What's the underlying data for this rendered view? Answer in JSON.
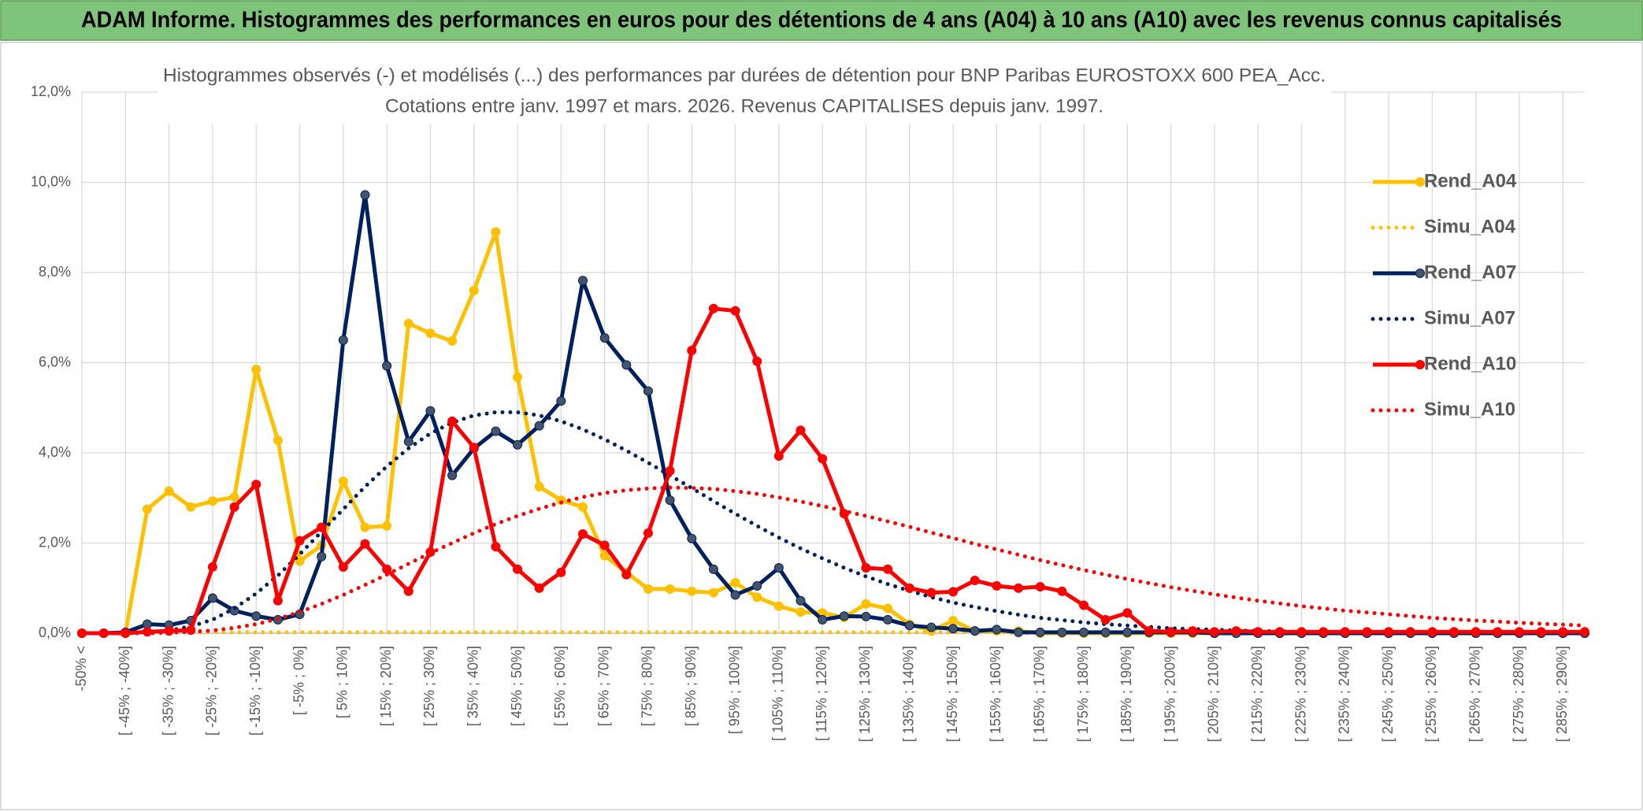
{
  "header": {
    "title": "ADAM Informe. Histogrammes des performances en euros pour des détentions de 4 ans (A04) à 10 ans (A10) avec les revenus connus capitalisés"
  },
  "chart_data": {
    "type": "line",
    "title": "Histogrammes observés (-) et modélisés (...) des performances par durées de détention pour BNP Paribas EUROSTOXX 600 PEA_Acc.",
    "subtitle": "Cotations entre janv. 1997 et mars. 2026. Revenus CAPITALISES depuis janv. 1997.",
    "categories": [
      "-50% <",
      null,
      "[ -45% ; -40%]",
      null,
      "[ -35% ; -30%]",
      null,
      "[ -25% ; -20%]",
      null,
      "[ -15% ; -10%]",
      null,
      "[ -5% ; 0%]",
      null,
      "[ 5% ; 10%]",
      null,
      "[ 15% ; 20%]",
      null,
      "[ 25% ; 30%]",
      null,
      "[ 35% ; 40%]",
      null,
      "[ 45% ; 50%]",
      null,
      "[ 55% ; 60%]",
      null,
      "[ 65% ; 70%]",
      null,
      "[ 75% ; 80%]",
      null,
      "[ 85% ; 90%]",
      null,
      "[ 95% ; 100%]",
      null,
      "[ 105% ; 110%]",
      null,
      "[ 115% ; 120%]",
      null,
      "[ 125% ; 130%]",
      null,
      "[ 135% ; 140%]",
      null,
      "[ 145% ; 150%]",
      null,
      "[ 155% ; 160%]",
      null,
      "[ 165% ; 170%]",
      null,
      "[ 175% ; 180%]",
      null,
      "[ 185% ; 190%]",
      null,
      "[ 195% ; 200%]",
      null,
      "[ 205% ; 210%]",
      null,
      "[ 215% ; 220%]",
      null,
      "[ 225% ; 230%]",
      null,
      "[ 235% ; 240%]",
      null,
      "[ 245% ; 250%]",
      null,
      "[ 255% ; 260%]",
      null,
      "[ 265% ; 270%]",
      null,
      "[ 275% ; 280%]",
      null,
      "[ 285% ; 290%]",
      null
    ],
    "ylim": [
      0,
      12
    ],
    "yticks": [
      {
        "value": 0,
        "label": "0,0%"
      },
      {
        "value": 2,
        "label": "2,0%"
      },
      {
        "value": 4,
        "label": "4,0%"
      },
      {
        "value": 6,
        "label": "6,0%"
      },
      {
        "value": 8,
        "label": "8,0%"
      },
      {
        "value": 10,
        "label": "10,0%"
      },
      {
        "value": 12,
        "label": "12,0%"
      }
    ],
    "grid": true,
    "legend": "right",
    "series": [
      {
        "name": "Rend_A04",
        "color": "#ffc000",
        "line_style": "solid",
        "markers": true,
        "values": [
          0,
          0,
          0,
          2.75,
          3.15,
          2.8,
          2.93,
          3.02,
          5.85,
          4.28,
          1.6,
          1.95,
          3.37,
          2.35,
          2.38,
          6.87,
          6.65,
          6.48,
          7.6,
          8.9,
          5.68,
          3.25,
          2.95,
          2.8,
          1.72,
          1.35,
          0.98,
          0.98,
          0.93,
          0.9,
          1.12,
          0.8,
          0.6,
          0.47,
          0.45,
          0.35,
          0.65,
          0.55,
          0.2,
          0.05,
          0.28,
          0.05,
          0.05,
          0.05,
          0,
          0,
          0,
          0,
          0,
          0,
          0,
          0,
          0,
          0,
          0,
          0,
          0,
          0,
          0,
          0,
          0,
          0,
          0,
          0,
          0,
          0,
          0,
          0,
          0,
          0
        ]
      },
      {
        "name": "Simu_A04",
        "color": "#ffc000",
        "line_style": "dotted",
        "markers": false,
        "values": [
          0,
          0,
          0,
          0.02,
          0.02,
          0.02,
          0.02,
          0.02,
          0.02,
          0.02,
          0.02,
          0.02,
          0.02,
          0.02,
          0.02,
          0.02,
          0.02,
          0.02,
          0.02,
          0.02,
          0.02,
          0.02,
          0.02,
          0.02,
          0.02,
          0.02,
          0.02,
          0.02,
          0.02,
          0.02,
          0.02,
          0.02,
          0.02,
          0.02,
          0.02,
          0.02,
          0.02,
          0.02,
          0.02,
          0.02,
          0.02,
          0.02,
          0.02,
          0,
          0,
          0,
          0,
          0,
          0,
          0,
          0,
          0,
          0,
          0,
          0,
          0,
          0,
          0,
          0,
          0,
          0,
          0,
          0,
          0,
          0,
          0,
          0,
          0,
          0,
          0
        ]
      },
      {
        "name": "Rend_A07",
        "color": "#002060",
        "line_style": "solid",
        "markers": true,
        "marker_color": "#44546a",
        "values": [
          0,
          0,
          0.02,
          0.2,
          0.18,
          0.28,
          0.78,
          0.5,
          0.38,
          0.3,
          0.42,
          1.7,
          6.5,
          9.72,
          5.93,
          4.25,
          4.93,
          3.5,
          4.1,
          4.48,
          4.18,
          4.6,
          5.15,
          7.82,
          6.55,
          5.95,
          5.37,
          2.95,
          2.1,
          1.42,
          0.85,
          1.05,
          1.45,
          0.72,
          0.3,
          0.38,
          0.37,
          0.3,
          0.17,
          0.13,
          0.1,
          0.05,
          0.08,
          0.02,
          0.02,
          0.02,
          0.02,
          0.02,
          0.02,
          0.02,
          0.02,
          0.02,
          0,
          0,
          0,
          0,
          0,
          0,
          0,
          0,
          0,
          0,
          0,
          0,
          0,
          0,
          0,
          0,
          0,
          0
        ]
      },
      {
        "name": "Simu_A07",
        "color": "#002060",
        "line_style": "dotted",
        "markers": false,
        "values": [
          0,
          0,
          0,
          0.02,
          0.06,
          0.15,
          0.3,
          0.55,
          0.88,
          1.28,
          1.75,
          2.25,
          2.75,
          3.25,
          3.7,
          4.1,
          4.43,
          4.67,
          4.83,
          4.9,
          4.9,
          4.83,
          4.7,
          4.52,
          4.3,
          4.05,
          3.78,
          3.5,
          3.22,
          2.93,
          2.65,
          2.38,
          2.12,
          1.88,
          1.66,
          1.45,
          1.26,
          1.09,
          0.94,
          0.8,
          0.68,
          0.58,
          0.49,
          0.41,
          0.34,
          0.29,
          0.24,
          0.2,
          0.17,
          0.14,
          0.11,
          0.09,
          0.08,
          0.06,
          0.05,
          0.04,
          0.03,
          0.03,
          0.02,
          0.02,
          0.02,
          0.02,
          0.01,
          0.01,
          0.01,
          0.01,
          0.01,
          0.01,
          0.01,
          0.01
        ]
      },
      {
        "name": "Rend_A10",
        "color": "#ff0000",
        "line_style": "solid",
        "markers": true,
        "values": [
          0,
          0,
          0,
          0.03,
          0.05,
          0.07,
          1.47,
          2.8,
          3.3,
          0.72,
          2.05,
          2.35,
          1.47,
          1.98,
          1.42,
          0.93,
          1.8,
          4.7,
          4.12,
          1.92,
          1.42,
          1.0,
          1.35,
          2.2,
          1.95,
          1.3,
          2.22,
          3.6,
          6.27,
          7.2,
          7.15,
          6.03,
          3.93,
          4.5,
          3.87,
          2.65,
          1.45,
          1.42,
          1.0,
          0.9,
          0.92,
          1.17,
          1.05,
          1.0,
          1.03,
          0.93,
          0.62,
          0.3,
          0.45,
          0.05,
          0.03,
          0.05,
          0.03,
          0.05,
          0.03,
          0.03,
          0.03,
          0.03,
          0.03,
          0.03,
          0.03,
          0.03,
          0.03,
          0.03,
          0.03,
          0.03,
          0.03,
          0.03,
          0.03,
          0.03
        ]
      },
      {
        "name": "Simu_A10",
        "color": "#ff0000",
        "line_style": "dotted",
        "markers": false,
        "values": [
          0,
          0,
          0,
          0,
          0.01,
          0.03,
          0.06,
          0.12,
          0.2,
          0.32,
          0.47,
          0.65,
          0.85,
          1.07,
          1.3,
          1.54,
          1.78,
          2.0,
          2.22,
          2.42,
          2.6,
          2.76,
          2.9,
          3.02,
          3.11,
          3.17,
          3.21,
          3.23,
          3.22,
          3.2,
          3.15,
          3.09,
          3.01,
          2.92,
          2.82,
          2.71,
          2.6,
          2.48,
          2.36,
          2.23,
          2.11,
          1.98,
          1.86,
          1.74,
          1.62,
          1.51,
          1.4,
          1.3,
          1.2,
          1.11,
          1.02,
          0.94,
          0.86,
          0.79,
          0.72,
          0.66,
          0.6,
          0.55,
          0.5,
          0.46,
          0.42,
          0.38,
          0.34,
          0.31,
          0.28,
          0.26,
          0.23,
          0.21,
          0.19,
          0.17
        ]
      }
    ]
  }
}
